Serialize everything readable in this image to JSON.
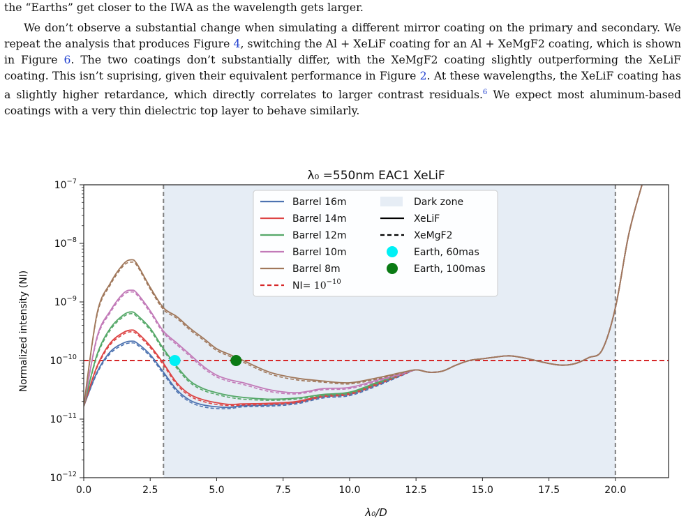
{
  "paper": {
    "line1": "the “Earths” get closer to the IWA as the wavelength gets larger.",
    "para": [
      {
        "t": "We don’t observe a substantial change when simulating a different mirror coating on the primary and secondary. We repeat the analysis that produces Figure "
      },
      {
        "t": "4",
        "ref": true
      },
      {
        "t": ", switching the Al + XeLiF coating for an Al + XeMgF2 coating, which is shown in Figure "
      },
      {
        "t": "6",
        "ref": true
      },
      {
        "t": ". The two coatings don’t substantially differ, with the XeMgF2 coating slightly outperforming the XeLiF coating. This isn’t suprising, given their equivalent performance in Figure "
      },
      {
        "t": "2",
        "ref": true
      },
      {
        "t": ". At these wavelengths, the XeLiF coating has a slightly higher retardance, which directly correlates to larger contrast residuals."
      },
      {
        "t": "6",
        "ref": true,
        "sup": true
      },
      {
        "t": " We expect most aluminum-based coatings with a very thin dielectric top layer to behave similarly."
      }
    ]
  },
  "chart_data": {
    "type": "line",
    "title": "λ₀ =550nm EAC1 XeLiF",
    "xlabel": "λ₀/D",
    "ylabel": "Normalized intensity (NI)",
    "xlim": [
      0,
      22
    ],
    "ylim_log10": [
      -12,
      -7
    ],
    "yscale": "log",
    "xticks": [
      0,
      2.5,
      5,
      7.5,
      10,
      12.5,
      15,
      17.5,
      20
    ],
    "xtick_labels": [
      "0.0",
      "2.5",
      "5.0",
      "7.5",
      "10.0",
      "12.5",
      "15.0",
      "17.5",
      "20.0"
    ],
    "yticks": [
      -12,
      -11,
      -10,
      -9,
      -8,
      -7
    ],
    "ytick_base": "10",
    "ytick_exps": [
      "−12",
      "−11",
      "−10",
      "−9",
      "−8",
      "−7"
    ],
    "dark_zone": {
      "label": "Dark zone",
      "range": [
        3,
        20
      ],
      "color": "#e6edf5"
    },
    "coating_styles": [
      {
        "name": "XeLiF",
        "dash": "solid"
      },
      {
        "name": "XeMgF2",
        "dash": "dashed"
      }
    ],
    "threshold": {
      "label": "NI=",
      "base": "10",
      "exp": "−10",
      "log10": -10,
      "color": "#d62728"
    },
    "shared_tail": {
      "x": [
        12.0,
        12.5,
        13.0,
        13.5,
        14.0,
        14.5,
        15.0,
        15.5,
        16.0,
        16.5,
        17.0,
        17.5,
        18.0,
        18.5,
        19.0,
        19.5,
        20.0,
        20.5,
        21.0
      ],
      "log10": [
        -10.24,
        -10.16,
        -10.2,
        -10.18,
        -10.08,
        -10.0,
        -9.97,
        -9.94,
        -9.92,
        -9.95,
        -10.0,
        -10.05,
        -10.08,
        -10.05,
        -9.95,
        -9.82,
        -9.1,
        -7.85,
        -7.0
      ]
    },
    "series": [
      {
        "name": "Barrel 16m",
        "color": "#4c72b0",
        "x": [
          0.0,
          0.5,
          1.0,
          1.5,
          1.8,
          2.0,
          2.5,
          3.0,
          3.5,
          4.0,
          4.5,
          5.0,
          5.5,
          6.0,
          7.0,
          8.0,
          9.0,
          10.0,
          11.0,
          12.0
        ],
        "log10": [
          -10.78,
          -10.2,
          -9.85,
          -9.7,
          -9.67,
          -9.7,
          -9.9,
          -10.2,
          -10.5,
          -10.68,
          -10.76,
          -10.79,
          -10.8,
          -10.77,
          -10.76,
          -10.72,
          -10.62,
          -10.58,
          -10.42,
          -10.24
        ],
        "log10_alt": [
          -10.78,
          -10.22,
          -9.88,
          -9.73,
          -9.7,
          -9.73,
          -9.93,
          -10.23,
          -10.53,
          -10.71,
          -10.79,
          -10.82,
          -10.82,
          -10.79,
          -10.78,
          -10.74,
          -10.64,
          -10.6,
          -10.44,
          -10.25
        ]
      },
      {
        "name": "Barrel 14m",
        "color": "#dd4444",
        "x": [
          0.0,
          0.5,
          1.0,
          1.5,
          1.8,
          2.0,
          2.5,
          3.0,
          3.5,
          4.0,
          4.5,
          5.0,
          5.5,
          6.0,
          7.0,
          8.0,
          9.0,
          10.0,
          11.0,
          12.0
        ],
        "log10": [
          -10.78,
          -10.1,
          -9.7,
          -9.52,
          -9.48,
          -9.52,
          -9.75,
          -10.05,
          -10.38,
          -10.58,
          -10.67,
          -10.72,
          -10.75,
          -10.74,
          -10.73,
          -10.7,
          -10.6,
          -10.56,
          -10.4,
          -10.23
        ],
        "log10_alt": [
          -10.78,
          -10.12,
          -9.73,
          -9.55,
          -9.51,
          -9.55,
          -9.78,
          -10.08,
          -10.41,
          -10.61,
          -10.7,
          -10.75,
          -10.77,
          -10.76,
          -10.75,
          -10.72,
          -10.62,
          -10.58,
          -10.42,
          -10.24
        ]
      },
      {
        "name": "Barrel 12m",
        "color": "#55a868",
        "x": [
          0.0,
          0.5,
          1.0,
          1.5,
          1.8,
          2.0,
          2.5,
          3.0,
          3.5,
          4.0,
          4.5,
          5.0,
          5.5,
          6.0,
          7.0,
          8.0,
          9.0,
          10.0,
          11.0,
          12.0
        ],
        "log10": [
          -10.78,
          -9.9,
          -9.45,
          -9.22,
          -9.17,
          -9.22,
          -9.45,
          -9.8,
          -10.1,
          -10.35,
          -10.48,
          -10.55,
          -10.6,
          -10.63,
          -10.66,
          -10.64,
          -10.58,
          -10.54,
          -10.38,
          -10.22
        ],
        "log10_alt": [
          -10.78,
          -9.93,
          -9.48,
          -9.25,
          -9.2,
          -9.25,
          -9.48,
          -9.83,
          -10.13,
          -10.38,
          -10.51,
          -10.58,
          -10.63,
          -10.66,
          -10.68,
          -10.66,
          -10.6,
          -10.56,
          -10.4,
          -10.23
        ]
      },
      {
        "name": "Barrel 10m",
        "color": "#c27ab8",
        "x": [
          0.0,
          0.5,
          1.0,
          1.5,
          1.8,
          2.0,
          2.5,
          3.0,
          3.5,
          4.0,
          4.5,
          5.0,
          5.5,
          6.0,
          7.0,
          8.0,
          9.0,
          10.0,
          11.0,
          12.0
        ],
        "log10": [
          -10.78,
          -9.6,
          -9.15,
          -8.85,
          -8.8,
          -8.85,
          -9.15,
          -9.5,
          -9.7,
          -9.9,
          -10.1,
          -10.25,
          -10.33,
          -10.38,
          -10.5,
          -10.55,
          -10.48,
          -10.46,
          -10.34,
          -10.22
        ],
        "log10_alt": [
          -10.78,
          -9.63,
          -9.18,
          -8.88,
          -8.83,
          -8.88,
          -9.18,
          -9.53,
          -9.73,
          -9.93,
          -10.13,
          -10.28,
          -10.36,
          -10.41,
          -10.53,
          -10.57,
          -10.5,
          -10.48,
          -10.36,
          -10.23
        ]
      },
      {
        "name": "Barrel 8m",
        "color": "#a0775a",
        "x": [
          0.0,
          0.5,
          1.0,
          1.5,
          1.8,
          2.0,
          2.5,
          3.0,
          3.5,
          4.0,
          4.5,
          5.0,
          5.5,
          6.0,
          7.0,
          8.0,
          9.0,
          10.0,
          11.0,
          12.0
        ],
        "log10": [
          -10.78,
          -9.2,
          -8.68,
          -8.35,
          -8.28,
          -8.35,
          -8.75,
          -9.1,
          -9.25,
          -9.45,
          -9.62,
          -9.8,
          -9.9,
          -10.0,
          -10.2,
          -10.3,
          -10.35,
          -10.38,
          -10.3,
          -10.2
        ],
        "log10_alt": [
          -10.78,
          -9.23,
          -8.71,
          -8.38,
          -8.32,
          -8.38,
          -8.78,
          -9.13,
          -9.28,
          -9.48,
          -9.65,
          -9.83,
          -9.93,
          -10.03,
          -10.23,
          -10.33,
          -10.37,
          -10.4,
          -10.32,
          -10.21
        ]
      }
    ],
    "markers": [
      {
        "name": "Earth, 60mas",
        "x": 3.43,
        "log10": -10.0,
        "color": "#00f0f5"
      },
      {
        "name": "Earth, 100mas",
        "x": 5.73,
        "log10": -10.0,
        "color": "#0a7a14"
      }
    ]
  }
}
